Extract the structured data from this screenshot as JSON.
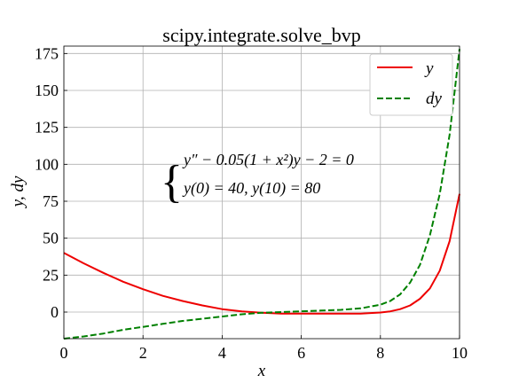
{
  "chart_data": {
    "type": "line",
    "title": "scipy.integrate.solve_bvp",
    "xlabel": "x",
    "ylabel": "y, dy",
    "xlim": [
      0,
      10
    ],
    "ylim": [
      -18,
      180
    ],
    "grid": true,
    "legend_position": "top-right",
    "x_ticks": [
      0,
      2,
      4,
      6,
      8,
      10
    ],
    "y_ticks": [
      0,
      25,
      50,
      75,
      100,
      125,
      150,
      175
    ],
    "x_tick_labels": [
      "0",
      "2",
      "4",
      "6",
      "8",
      "10"
    ],
    "y_tick_labels": [
      "0",
      "25",
      "50",
      "75",
      "100",
      "125",
      "150",
      "175"
    ],
    "annotation": {
      "equation": "y″ − 0.05(1 + x²)y − 2 = 0",
      "boundary": "y(0) = 40, y(10) = 80"
    },
    "series": [
      {
        "name": "y",
        "color": "#ee0000",
        "dash": "solid",
        "x": [
          0,
          0.5,
          1,
          1.5,
          2,
          2.5,
          3,
          3.5,
          4,
          4.5,
          5,
          5.5,
          6,
          6.5,
          7,
          7.5,
          8,
          8.25,
          8.5,
          8.75,
          9,
          9.25,
          9.5,
          9.75,
          10
        ],
        "values": [
          40,
          33,
          26.5,
          20.5,
          15.5,
          11,
          7.5,
          4.5,
          2,
          0.5,
          -0.5,
          -1,
          -1,
          -1,
          -1,
          -1,
          -0.3,
          0.5,
          2,
          4.5,
          9,
          16,
          28,
          48,
          80
        ]
      },
      {
        "name": "dy",
        "color": "#008000",
        "dash": "dashed",
        "x": [
          0,
          0.5,
          1,
          1.5,
          2,
          2.5,
          3,
          3.5,
          4,
          4.5,
          5,
          5.5,
          6,
          6.5,
          7,
          7.5,
          8,
          8.25,
          8.5,
          8.75,
          9,
          9.25,
          9.5,
          9.75,
          10
        ],
        "values": [
          -18,
          -16.5,
          -14.5,
          -12,
          -10,
          -8,
          -6,
          -4.5,
          -3,
          -1.5,
          -0.5,
          0,
          0.5,
          1,
          1.5,
          2.5,
          5,
          7.5,
          12,
          20,
          32,
          52,
          80,
          120,
          178
        ]
      }
    ]
  }
}
